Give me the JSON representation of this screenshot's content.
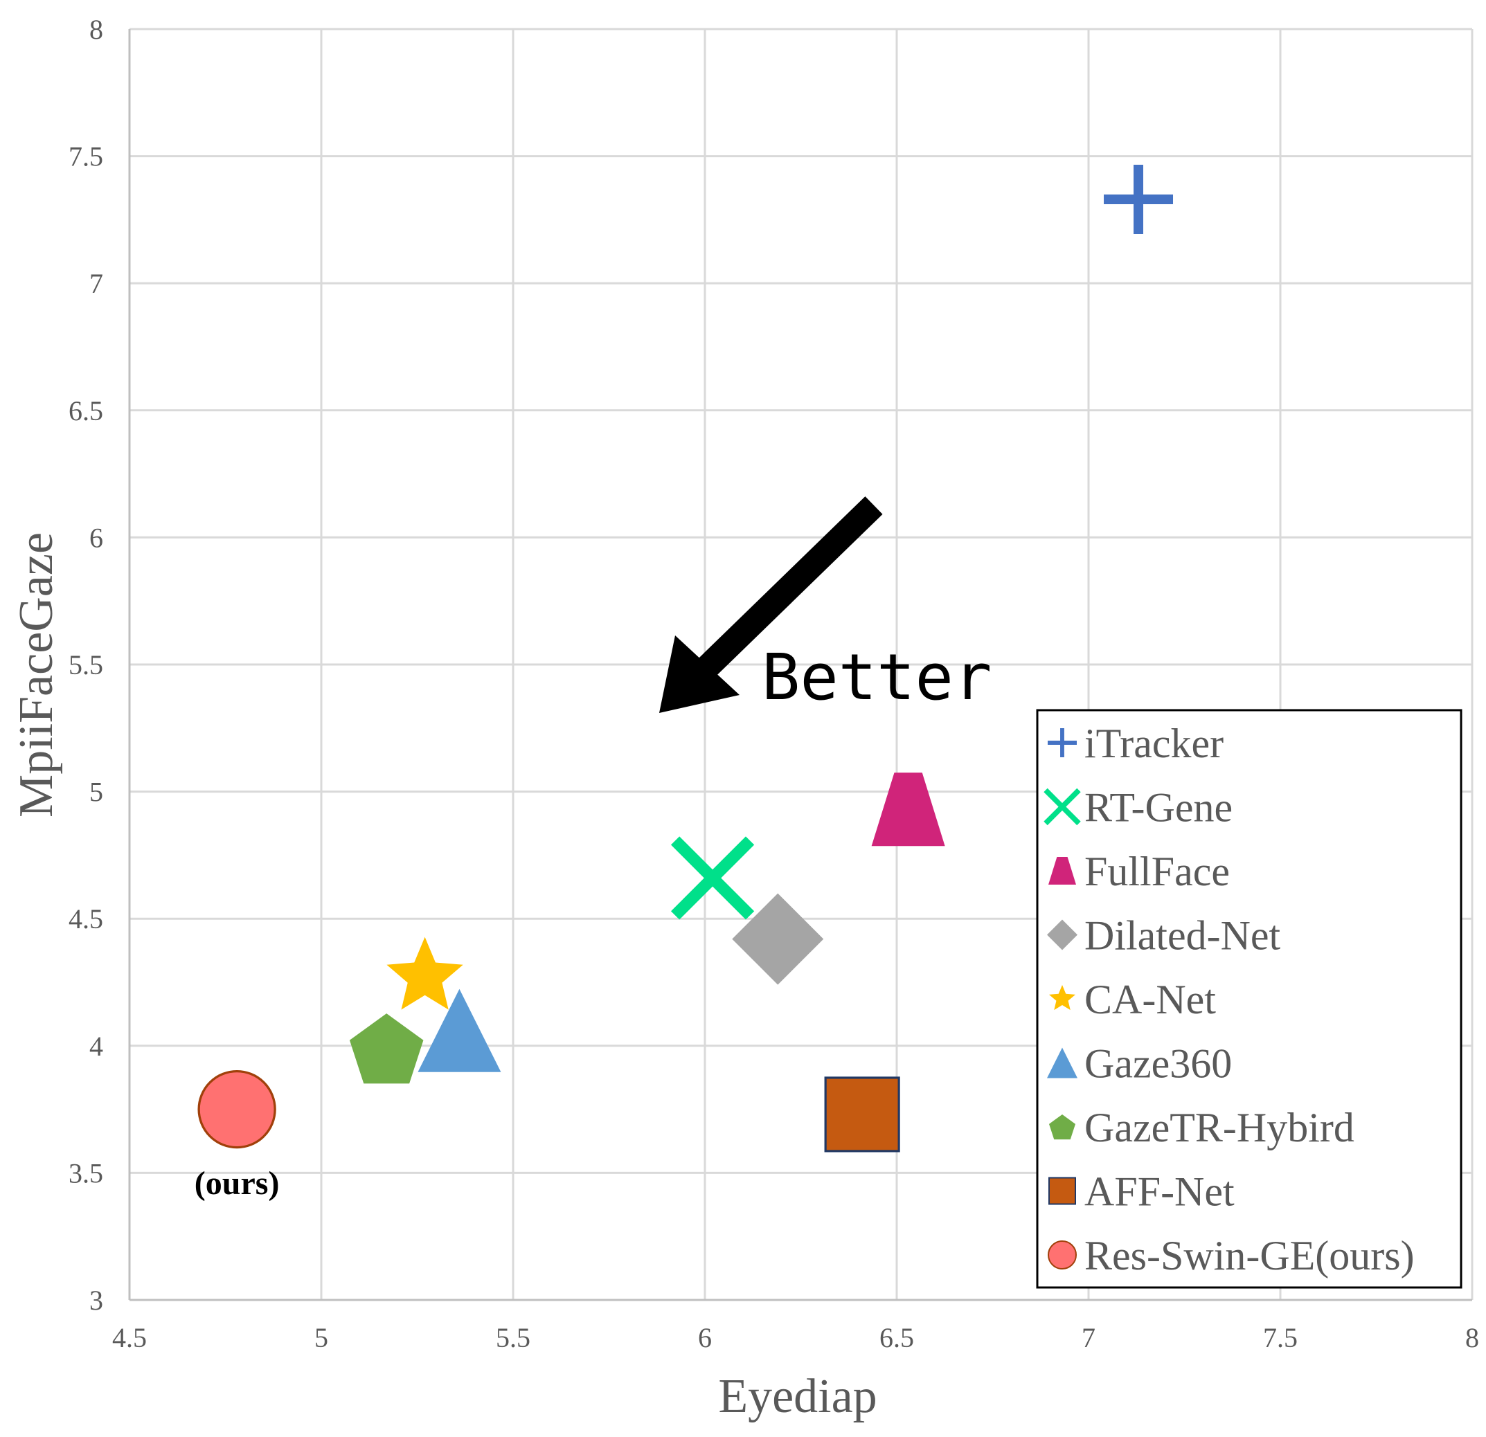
{
  "chart_data": {
    "type": "scatter",
    "title": "",
    "xlabel": "Eyediap",
    "ylabel": "MpiiFaceGaze",
    "xlim": [
      4.5,
      8
    ],
    "ylim": [
      3,
      8
    ],
    "xticks": [
      4.5,
      5,
      5.5,
      6,
      6.5,
      7,
      7.5,
      8
    ],
    "xtick_labels": [
      "4.5",
      "5",
      "5.5",
      "6",
      "6.5",
      "7",
      "7.5",
      "8"
    ],
    "yticks": [
      3,
      3.5,
      4,
      4.5,
      5,
      5.5,
      6,
      6.5,
      7,
      7.5,
      8
    ],
    "ytick_labels": [
      "3",
      "3.5",
      "4",
      "4.5",
      "5",
      "5.5",
      "6",
      "6.5",
      "7",
      "7.5",
      "8"
    ],
    "grid": true,
    "legend_position": "bottom-right",
    "series": [
      {
        "name": "iTracker",
        "x": 7.13,
        "y": 7.33,
        "marker": "plus",
        "color": "#4472C4"
      },
      {
        "name": "RT-Gene",
        "x": 6.02,
        "y": 4.66,
        "marker": "x",
        "color": "#00E08A"
      },
      {
        "name": "FullFace",
        "x": 6.53,
        "y": 4.93,
        "marker": "trapezoid",
        "color": "#D0247A"
      },
      {
        "name": "Dilated-Net",
        "x": 6.19,
        "y": 4.42,
        "marker": "diamond",
        "color": "#A5A5A5"
      },
      {
        "name": "CA-Net",
        "x": 5.27,
        "y": 4.27,
        "marker": "star",
        "color": "#FFC000"
      },
      {
        "name": "Gaze360",
        "x": 5.36,
        "y": 4.06,
        "marker": "triangle",
        "color": "#5B9BD5"
      },
      {
        "name": "GazeTR-Hybird",
        "x": 5.17,
        "y": 3.99,
        "marker": "pentagon",
        "color": "#70AD47"
      },
      {
        "name": "AFF-Net",
        "x": 6.41,
        "y": 3.73,
        "marker": "square",
        "color": "#C55A11"
      },
      {
        "name": "Res-Swin-GE(ours)",
        "x": 4.78,
        "y": 3.75,
        "marker": "circle",
        "color": "#FF7171"
      }
    ],
    "annotations": [
      {
        "text": "Better",
        "kind": "arrow-label"
      },
      {
        "text": "(ours)",
        "kind": "point-label"
      }
    ]
  }
}
